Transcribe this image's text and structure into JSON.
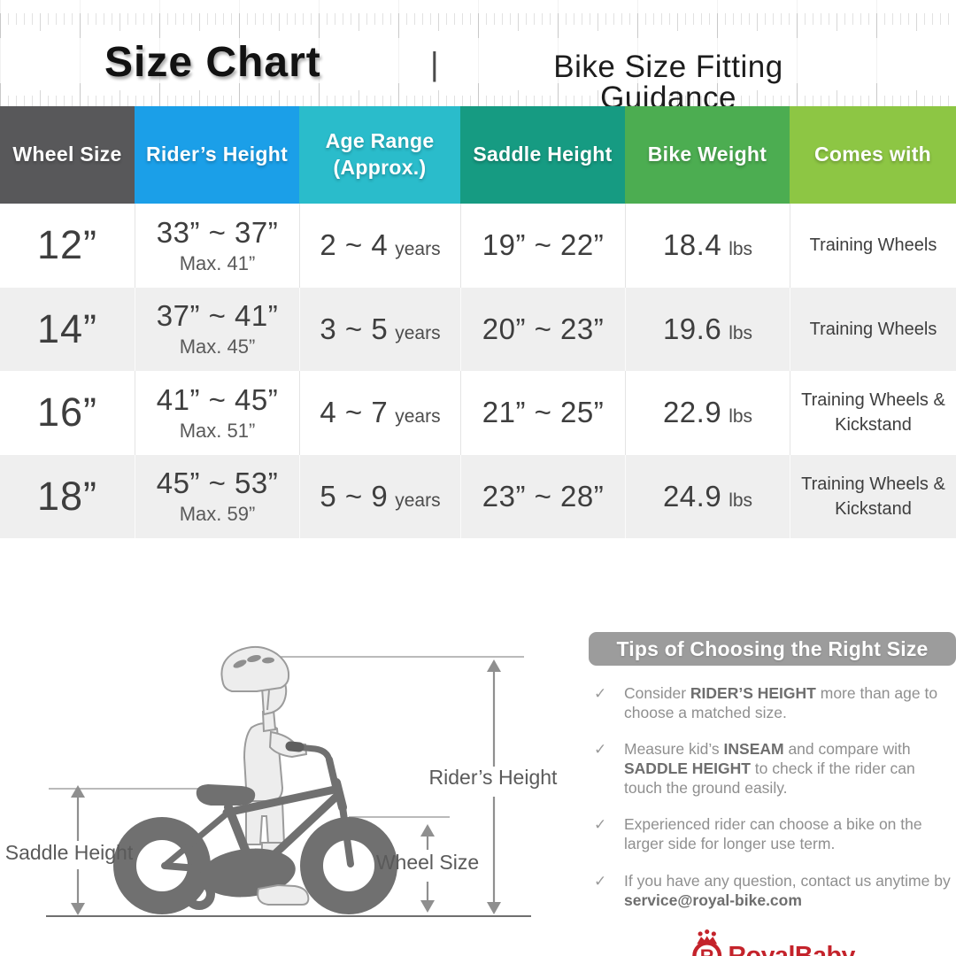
{
  "header": {
    "title": "Size Chart",
    "divider": "|",
    "subtitle": "Bike Size Fitting Guidance"
  },
  "table": {
    "columns": [
      {
        "key": "wheel-size",
        "label": "Wheel Size",
        "color": "#58585a"
      },
      {
        "key": "riders-height",
        "label": "Rider’s Height",
        "color": "#1b9fe8"
      },
      {
        "key": "age-range",
        "label": "Age Range",
        "label2": "(Approx.)",
        "color": "#2abccb"
      },
      {
        "key": "saddle-height",
        "label": "Saddle Height",
        "color": "#169b82"
      },
      {
        "key": "bike-weight",
        "label": "Bike Weight",
        "color": "#4cad51"
      },
      {
        "key": "comes-with",
        "label": "Comes with",
        "color": "#8dc644"
      }
    ],
    "rows": [
      {
        "wheel": "12”",
        "height": "33” ~ 37”",
        "height_max": "Max. 41”",
        "age": "2 ~ 4",
        "age_unit": "years",
        "saddle": "19” ~ 22”",
        "weight": "18.4",
        "weight_unit": "lbs",
        "comes": "Training Wheels"
      },
      {
        "wheel": "14”",
        "height": "37” ~ 41”",
        "height_max": "Max. 45”",
        "age": "3 ~ 5",
        "age_unit": "years",
        "saddle": "20” ~ 23”",
        "weight": "19.6",
        "weight_unit": "lbs",
        "comes": "Training Wheels"
      },
      {
        "wheel": "16”",
        "height": "41” ~ 45”",
        "height_max": "Max. 51”",
        "age": "4 ~ 7",
        "age_unit": "years",
        "saddle": "21” ~ 25”",
        "weight": "22.9",
        "weight_unit": "lbs",
        "comes": "Training Wheels & Kickstand"
      },
      {
        "wheel": "18”",
        "height": "45” ~ 53”",
        "height_max": "Max. 59”",
        "age": "5 ~ 9",
        "age_unit": "years",
        "saddle": "23” ~ 28”",
        "weight": "24.9",
        "weight_unit": "lbs",
        "comes": "Training Wheels & Kickstand"
      }
    ]
  },
  "chart_data": {
    "type": "table",
    "title": "Size Chart — Bike Size Fitting Guidance",
    "columns": [
      "Wheel Size",
      "Rider’s Height",
      "Age Range (Approx.)",
      "Saddle Height",
      "Bike Weight",
      "Comes with"
    ],
    "rows": [
      [
        "12”",
        "33” ~ 37” (Max. 41”)",
        "2 ~ 4 years",
        "19” ~ 22”",
        "18.4 lbs",
        "Training Wheels"
      ],
      [
        "14”",
        "37” ~ 41” (Max. 45”)",
        "3 ~ 5 years",
        "20” ~ 23”",
        "19.6 lbs",
        "Training Wheels"
      ],
      [
        "16”",
        "41” ~ 45” (Max. 51”)",
        "4 ~ 7 years",
        "21” ~ 25”",
        "22.9 lbs",
        "Training Wheels & Kickstand"
      ],
      [
        "18”",
        "45” ~ 53” (Max. 59”)",
        "5 ~ 9 years",
        "23” ~ 28”",
        "24.9 lbs",
        "Training Wheels & Kickstand"
      ]
    ]
  },
  "diagram": {
    "rider_label": "Rider’s Height",
    "saddle_label": "Saddle Height",
    "wheel_label": "Wheel Size"
  },
  "tips": {
    "title": "Tips of Choosing the Right Size",
    "check": "✓",
    "items": [
      {
        "parts": [
          {
            "t": "Consider "
          },
          {
            "t": "RIDER’S HEIGHT",
            "b": true
          },
          {
            "t": " more than age to choose a matched size."
          }
        ]
      },
      {
        "parts": [
          {
            "t": "Measure kid’s "
          },
          {
            "t": "INSEAM",
            "b": true
          },
          {
            "t": " and compare with "
          },
          {
            "t": "SADDLE HEIGHT",
            "b": true
          },
          {
            "t": " to check if the rider can touch the ground easily."
          }
        ]
      },
      {
        "parts": [
          {
            "t": "Experienced rider can choose a bike on the larger side for longer use term."
          }
        ]
      },
      {
        "parts": [
          {
            "t": "If you have any question, contact us anytime by "
          },
          {
            "t": "service@royal-bike.com",
            "b": true
          }
        ]
      }
    ]
  },
  "brand": {
    "name": "RoyalBaby",
    "monogram": "R",
    "color": "#c4232b"
  }
}
